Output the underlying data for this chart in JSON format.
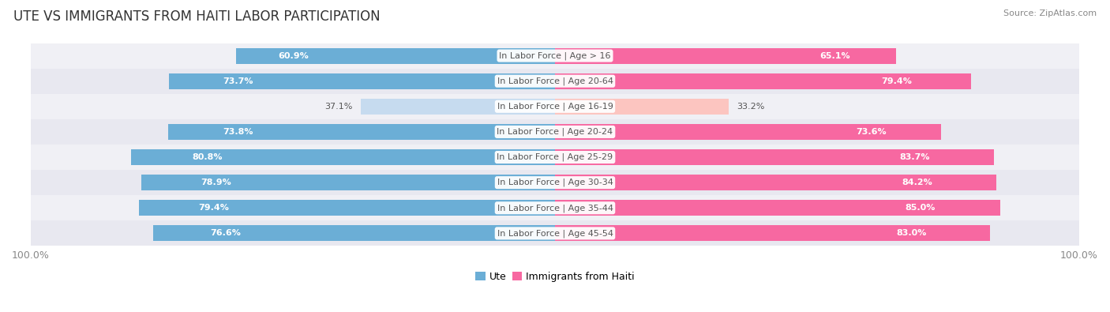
{
  "title": "UTE VS IMMIGRANTS FROM HAITI LABOR PARTICIPATION",
  "source": "Source: ZipAtlas.com",
  "categories": [
    "In Labor Force | Age > 16",
    "In Labor Force | Age 20-64",
    "In Labor Force | Age 16-19",
    "In Labor Force | Age 20-24",
    "In Labor Force | Age 25-29",
    "In Labor Force | Age 30-34",
    "In Labor Force | Age 35-44",
    "In Labor Force | Age 45-54"
  ],
  "ute_values": [
    60.9,
    73.7,
    37.1,
    73.8,
    80.8,
    78.9,
    79.4,
    76.6
  ],
  "haiti_values": [
    65.1,
    79.4,
    33.2,
    73.6,
    83.7,
    84.2,
    85.0,
    83.0
  ],
  "ute_color_full": "#6baed6",
  "ute_color_light": "#c6dbef",
  "haiti_color_full": "#f768a1",
  "haiti_color_light": "#fcc5c0",
  "row_bg_odd": "#f0f0f5",
  "row_bg_even": "#e8e8f0",
  "title_fontsize": 12,
  "label_fontsize": 8,
  "value_fontsize": 8,
  "legend_fontsize": 9,
  "max_value": 100.0,
  "bar_height": 0.62,
  "background_color": "#ffffff",
  "axis_text_color": "#888888",
  "label_text_color": "#555555",
  "low_threshold": 50
}
